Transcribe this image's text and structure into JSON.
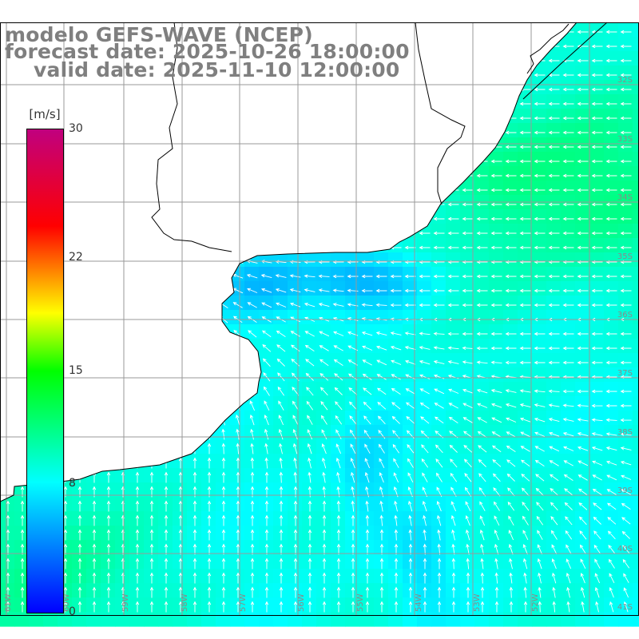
{
  "title": {
    "line1": "modelo GEFS-WAVE (NCEP)",
    "line2": "forecast date: 2025-10-26 18:00:00",
    "line3": "valid date: 2025-11-10 12:00:00"
  },
  "colorbar": {
    "units": "[m/s]",
    "min": 0,
    "max": 30,
    "ticks": [
      {
        "value": 30,
        "label": "30"
      },
      {
        "value": 22,
        "label": "22"
      },
      {
        "value": 15,
        "label": "15"
      },
      {
        "value": 8,
        "label": "8"
      },
      {
        "value": 0,
        "label": "0"
      }
    ],
    "colors": [
      "#0000ff",
      "#00ffff",
      "#00ff00",
      "#ffff00",
      "#ff0000",
      "#c0007f"
    ]
  },
  "map": {
    "field": "wind speed",
    "land_color": "#ffffff",
    "coastline_color": "#000000",
    "grid_color": "#999999",
    "arrow_color": "#ffffff",
    "lat_labels": [
      "32S",
      "33S",
      "34S",
      "35S",
      "36S",
      "37S",
      "38S",
      "39S",
      "40S",
      "41S"
    ],
    "lon_labels": [
      "61W",
      "60W",
      "59W",
      "58W",
      "57W",
      "56W",
      "55W",
      "54W",
      "53W",
      "52W"
    ]
  }
}
